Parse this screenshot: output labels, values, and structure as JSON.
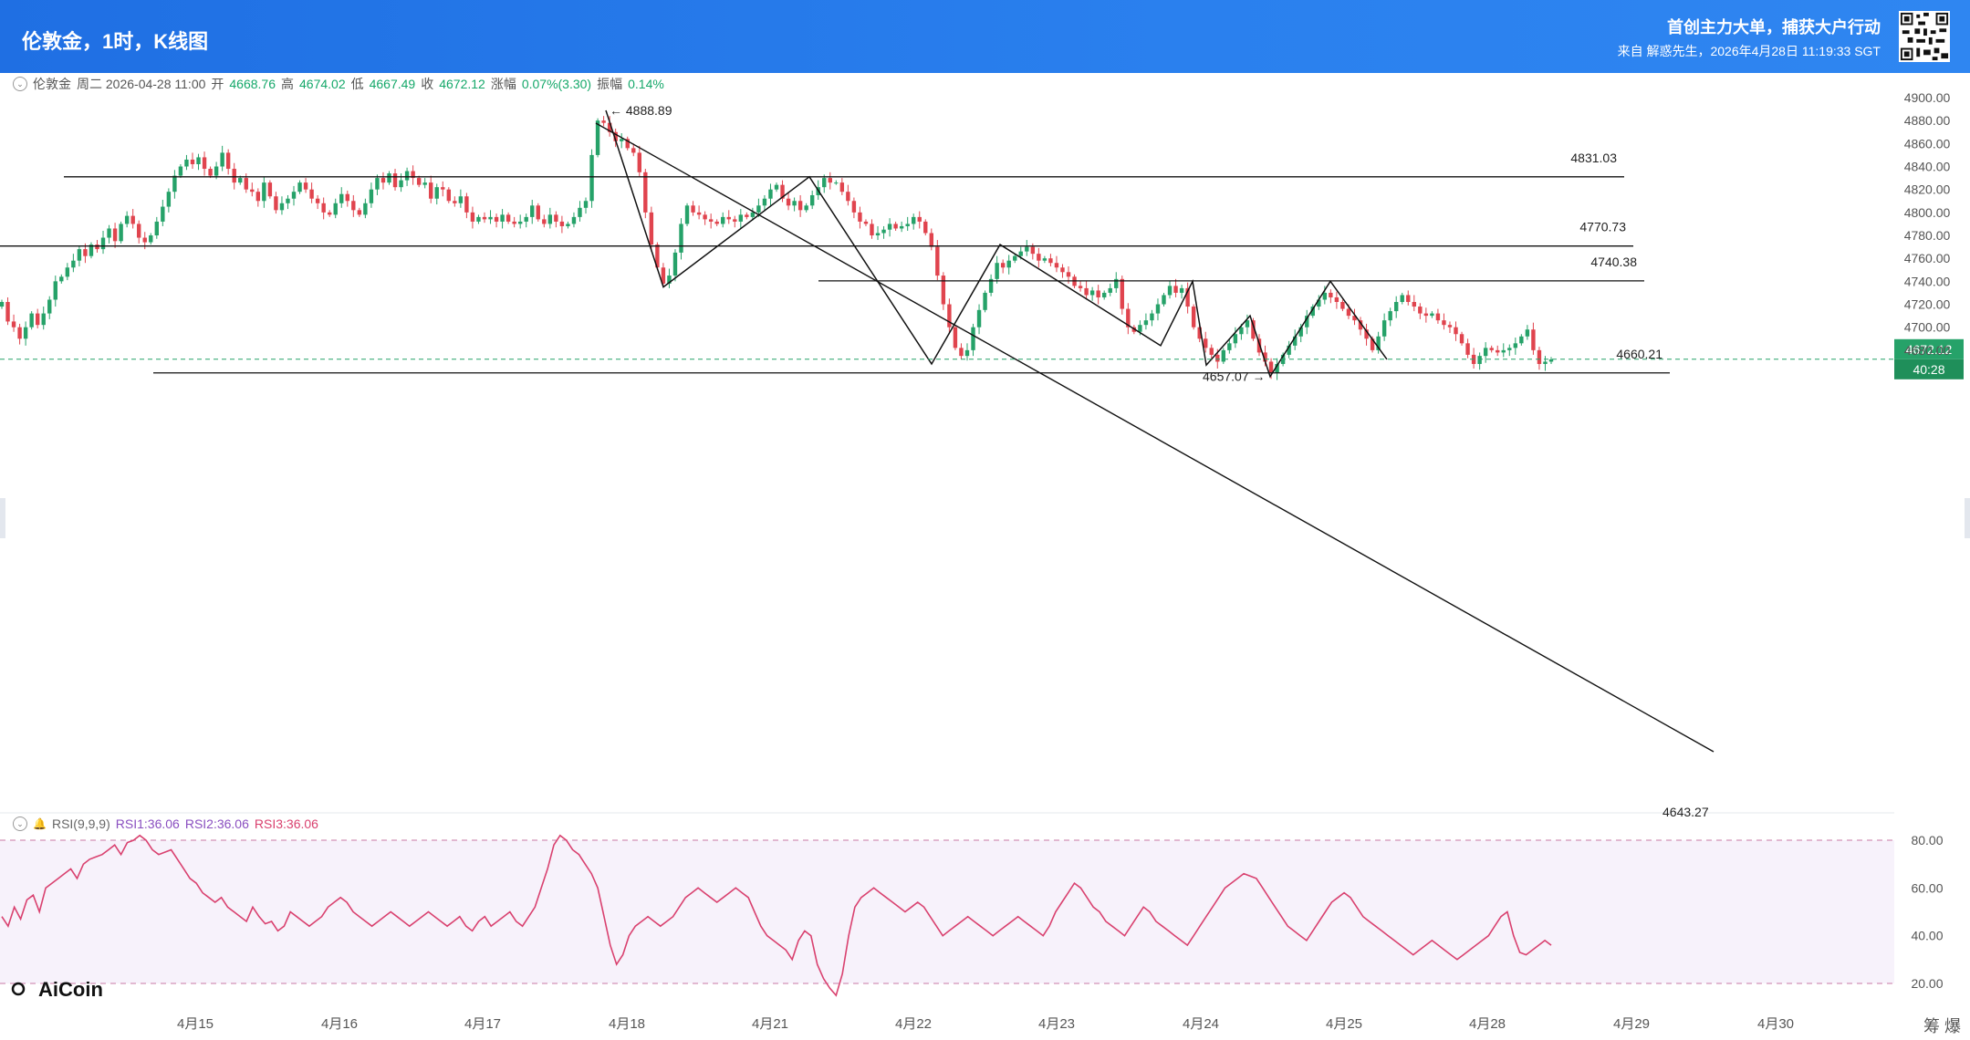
{
  "header": {
    "title": "伦敦金，1时，K线图",
    "slogan": "首创主力大单，捕获大户行动",
    "source": "来自 解惑先生，2026年4月28日 11:19:33 SGT"
  },
  "ohlc": {
    "symbol": "伦敦金",
    "datetime": "周二 2026-04-28 11:00",
    "open_label": "开",
    "open": "4668.76",
    "high_label": "高",
    "high": "4674.02",
    "low_label": "低",
    "low": "4667.49",
    "close_label": "收",
    "close": "4672.12",
    "change_label": "涨幅",
    "change": "0.07%(3.30)",
    "amp_label": "振幅",
    "amp": "0.14%"
  },
  "rsi_legend": {
    "name": "RSI(9,9,9)",
    "rsi1": "RSI1:36.06",
    "rsi2": "RSI2:36.06",
    "rsi3": "RSI3:36.06"
  },
  "logo": {
    "text": "AiCoin"
  },
  "footer": {
    "text": "筹 爆"
  },
  "price_tag": {
    "value": "4672.12",
    "countdown": "40:28"
  },
  "colors": {
    "up": "#26a269",
    "down": "#e0444e",
    "rsi": "#d9416f",
    "header": "#1f6fe3"
  },
  "chart_data": [
    {
      "type": "candlestick",
      "title": "伦敦金，1时，K线图",
      "x_ticks": [
        "4月15",
        "4月16",
        "4月17",
        "4月18",
        "4月21",
        "4月22",
        "4月23",
        "4月24",
        "4月25",
        "4月28",
        "4月29",
        "4月30"
      ],
      "y_ticks": [
        "4680.00",
        "4700.00",
        "4720.00",
        "4740.00",
        "4760.00",
        "4780.00",
        "4800.00",
        "4820.00",
        "4840.00",
        "4860.00",
        "4880.00",
        "4900.00"
      ],
      "ylim": [
        4645,
        4905
      ],
      "grid": false,
      "current_price": 4672.12,
      "high_marker": {
        "label": "← 4888.89",
        "value": 4888.89
      },
      "low_marker": {
        "label": "4657.07 →",
        "value": 4657.07
      },
      "horizontal_levels": [
        {
          "label": "4831.03",
          "value": 4831.03
        },
        {
          "label": "4770.73",
          "value": 4770.73
        },
        {
          "label": "4740.38",
          "value": 4740.38
        },
        {
          "label": "4660.21",
          "value": 4660.21
        }
      ],
      "partial_label": "4643.27",
      "zigzag": [
        4888.89,
        4735,
        4831.03,
        4668,
        4772,
        4684,
        4740,
        4667,
        4710,
        4657.07,
        4740,
        4672
      ],
      "closes": [
        4722,
        4705,
        4700,
        4690,
        4700,
        4712,
        4702,
        4712,
        4724,
        4740,
        4744,
        4752,
        4758,
        4768,
        4762,
        4772,
        4768,
        4778,
        4786,
        4775,
        4790,
        4797,
        4790,
        4778,
        4774,
        4780,
        4792,
        4805,
        4818,
        4832,
        4840,
        4846,
        4842,
        4848,
        4838,
        4832,
        4840,
        4852,
        4838,
        4826,
        4830,
        4820,
        4818,
        4810,
        4826,
        4814,
        4802,
        4808,
        4812,
        4818,
        4826,
        4820,
        4812,
        4808,
        4800,
        4798,
        4808,
        4816,
        4810,
        4802,
        4798,
        4808,
        4820,
        4830,
        4826,
        4834,
        4822,
        4828,
        4836,
        4830,
        4824,
        4826,
        4812,
        4822,
        4820,
        4810,
        4808,
        4814,
        4800,
        4792,
        4796,
        4794,
        4796,
        4792,
        4798,
        4792,
        4790,
        4792,
        4796,
        4806,
        4794,
        4790,
        4798,
        4792,
        4788,
        4790,
        4796,
        4804,
        4810,
        4850,
        4880,
        4878,
        4870,
        4862,
        4864,
        4856,
        4852,
        4835,
        4800,
        4772,
        4752,
        4738,
        4745,
        4765,
        4790,
        4806,
        4800,
        4798,
        4794,
        4792,
        4790,
        4796,
        4794,
        4792,
        4798,
        4796,
        4800,
        4806,
        4812,
        4820,
        4824,
        4812,
        4806,
        4810,
        4802,
        4806,
        4815,
        4822,
        4830,
        4826,
        4826,
        4818,
        4810,
        4800,
        4792,
        4790,
        4780,
        4782,
        4785,
        4790,
        4786,
        4788,
        4790,
        4796,
        4792,
        4782,
        4770,
        4745,
        4720,
        4700,
        4682,
        4675,
        4680,
        4700,
        4715,
        4730,
        4742,
        4756,
        4752,
        4758,
        4762,
        4766,
        4770,
        4764,
        4758,
        4760,
        4756,
        4752,
        4748,
        4744,
        4736,
        4734,
        4728,
        4732,
        4726,
        4730,
        4734,
        4742,
        4716,
        4700,
        4696,
        4702,
        4706,
        4712,
        4720,
        4728,
        4736,
        4730,
        4734,
        4718,
        4700,
        4690,
        4682,
        4676,
        4670,
        4680,
        4686,
        4694,
        4700,
        4706,
        4690,
        4678,
        4670,
        4660,
        4668,
        4676,
        4684,
        4692,
        4700,
        4710,
        4718,
        4724,
        4730,
        4726,
        4722,
        4716,
        4710,
        4706,
        4698,
        4690,
        4680,
        4692,
        4706,
        4714,
        4722,
        4728,
        4722,
        4718,
        4712,
        4710,
        4712,
        4706,
        4702,
        4700,
        4694,
        4686,
        4676,
        4668,
        4675,
        4682,
        4680,
        4678,
        4680,
        4682,
        4686,
        4692,
        4698,
        4680,
        4668,
        4670,
        4672
      ]
    },
    {
      "type": "line",
      "title": "RSI(9,9,9)",
      "series_name": "RSI1",
      "y_ticks": [
        "20.00",
        "40.00",
        "60.00",
        "80.00"
      ],
      "ylim": [
        12,
        84
      ],
      "reference_lines": [
        80,
        20
      ],
      "values": [
        48,
        44,
        52,
        47,
        55,
        57,
        50,
        60,
        62,
        64,
        66,
        68,
        64,
        70,
        72,
        73,
        74,
        76,
        78,
        74,
        79,
        80,
        82,
        80,
        76,
        74,
        75,
        76,
        72,
        68,
        64,
        62,
        58,
        56,
        54,
        56,
        52,
        50,
        48,
        46,
        52,
        48,
        45,
        46,
        42,
        44,
        50,
        48,
        46,
        44,
        46,
        48,
        52,
        54,
        56,
        54,
        50,
        48,
        46,
        44,
        46,
        48,
        50,
        48,
        46,
        44,
        46,
        48,
        50,
        48,
        46,
        44,
        46,
        48,
        44,
        42,
        46,
        48,
        44,
        46,
        48,
        50,
        46,
        44,
        48,
        52,
        60,
        68,
        78,
        82,
        80,
        76,
        74,
        70,
        66,
        60,
        48,
        36,
        28,
        32,
        40,
        44,
        46,
        48,
        46,
        44,
        46,
        48,
        52,
        56,
        58,
        60,
        58,
        56,
        54,
        56,
        58,
        60,
        58,
        56,
        50,
        44,
        40,
        38,
        36,
        34,
        30,
        38,
        42,
        40,
        28,
        22,
        18,
        15,
        24,
        40,
        52,
        56,
        58,
        60,
        58,
        56,
        54,
        52,
        50,
        52,
        54,
        52,
        48,
        44,
        40,
        42,
        44,
        46,
        48,
        46,
        44,
        42,
        40,
        42,
        44,
        46,
        48,
        46,
        44,
        42,
        40,
        44,
        50,
        54,
        58,
        62,
        60,
        56,
        52,
        50,
        46,
        44,
        42,
        40,
        44,
        48,
        52,
        50,
        46,
        44,
        42,
        40,
        38,
        36,
        40,
        44,
        48,
        52,
        56,
        60,
        62,
        64,
        66,
        65,
        64,
        60,
        56,
        52,
        48,
        44,
        42,
        40,
        38,
        42,
        46,
        50,
        54,
        56,
        58,
        56,
        52,
        48,
        46,
        44,
        42,
        40,
        38,
        36,
        34,
        32,
        34,
        36,
        38,
        36,
        34,
        32,
        30,
        32,
        34,
        36,
        38,
        40,
        44,
        48,
        50,
        40,
        33,
        32,
        34,
        36,
        38,
        36
      ]
    }
  ]
}
